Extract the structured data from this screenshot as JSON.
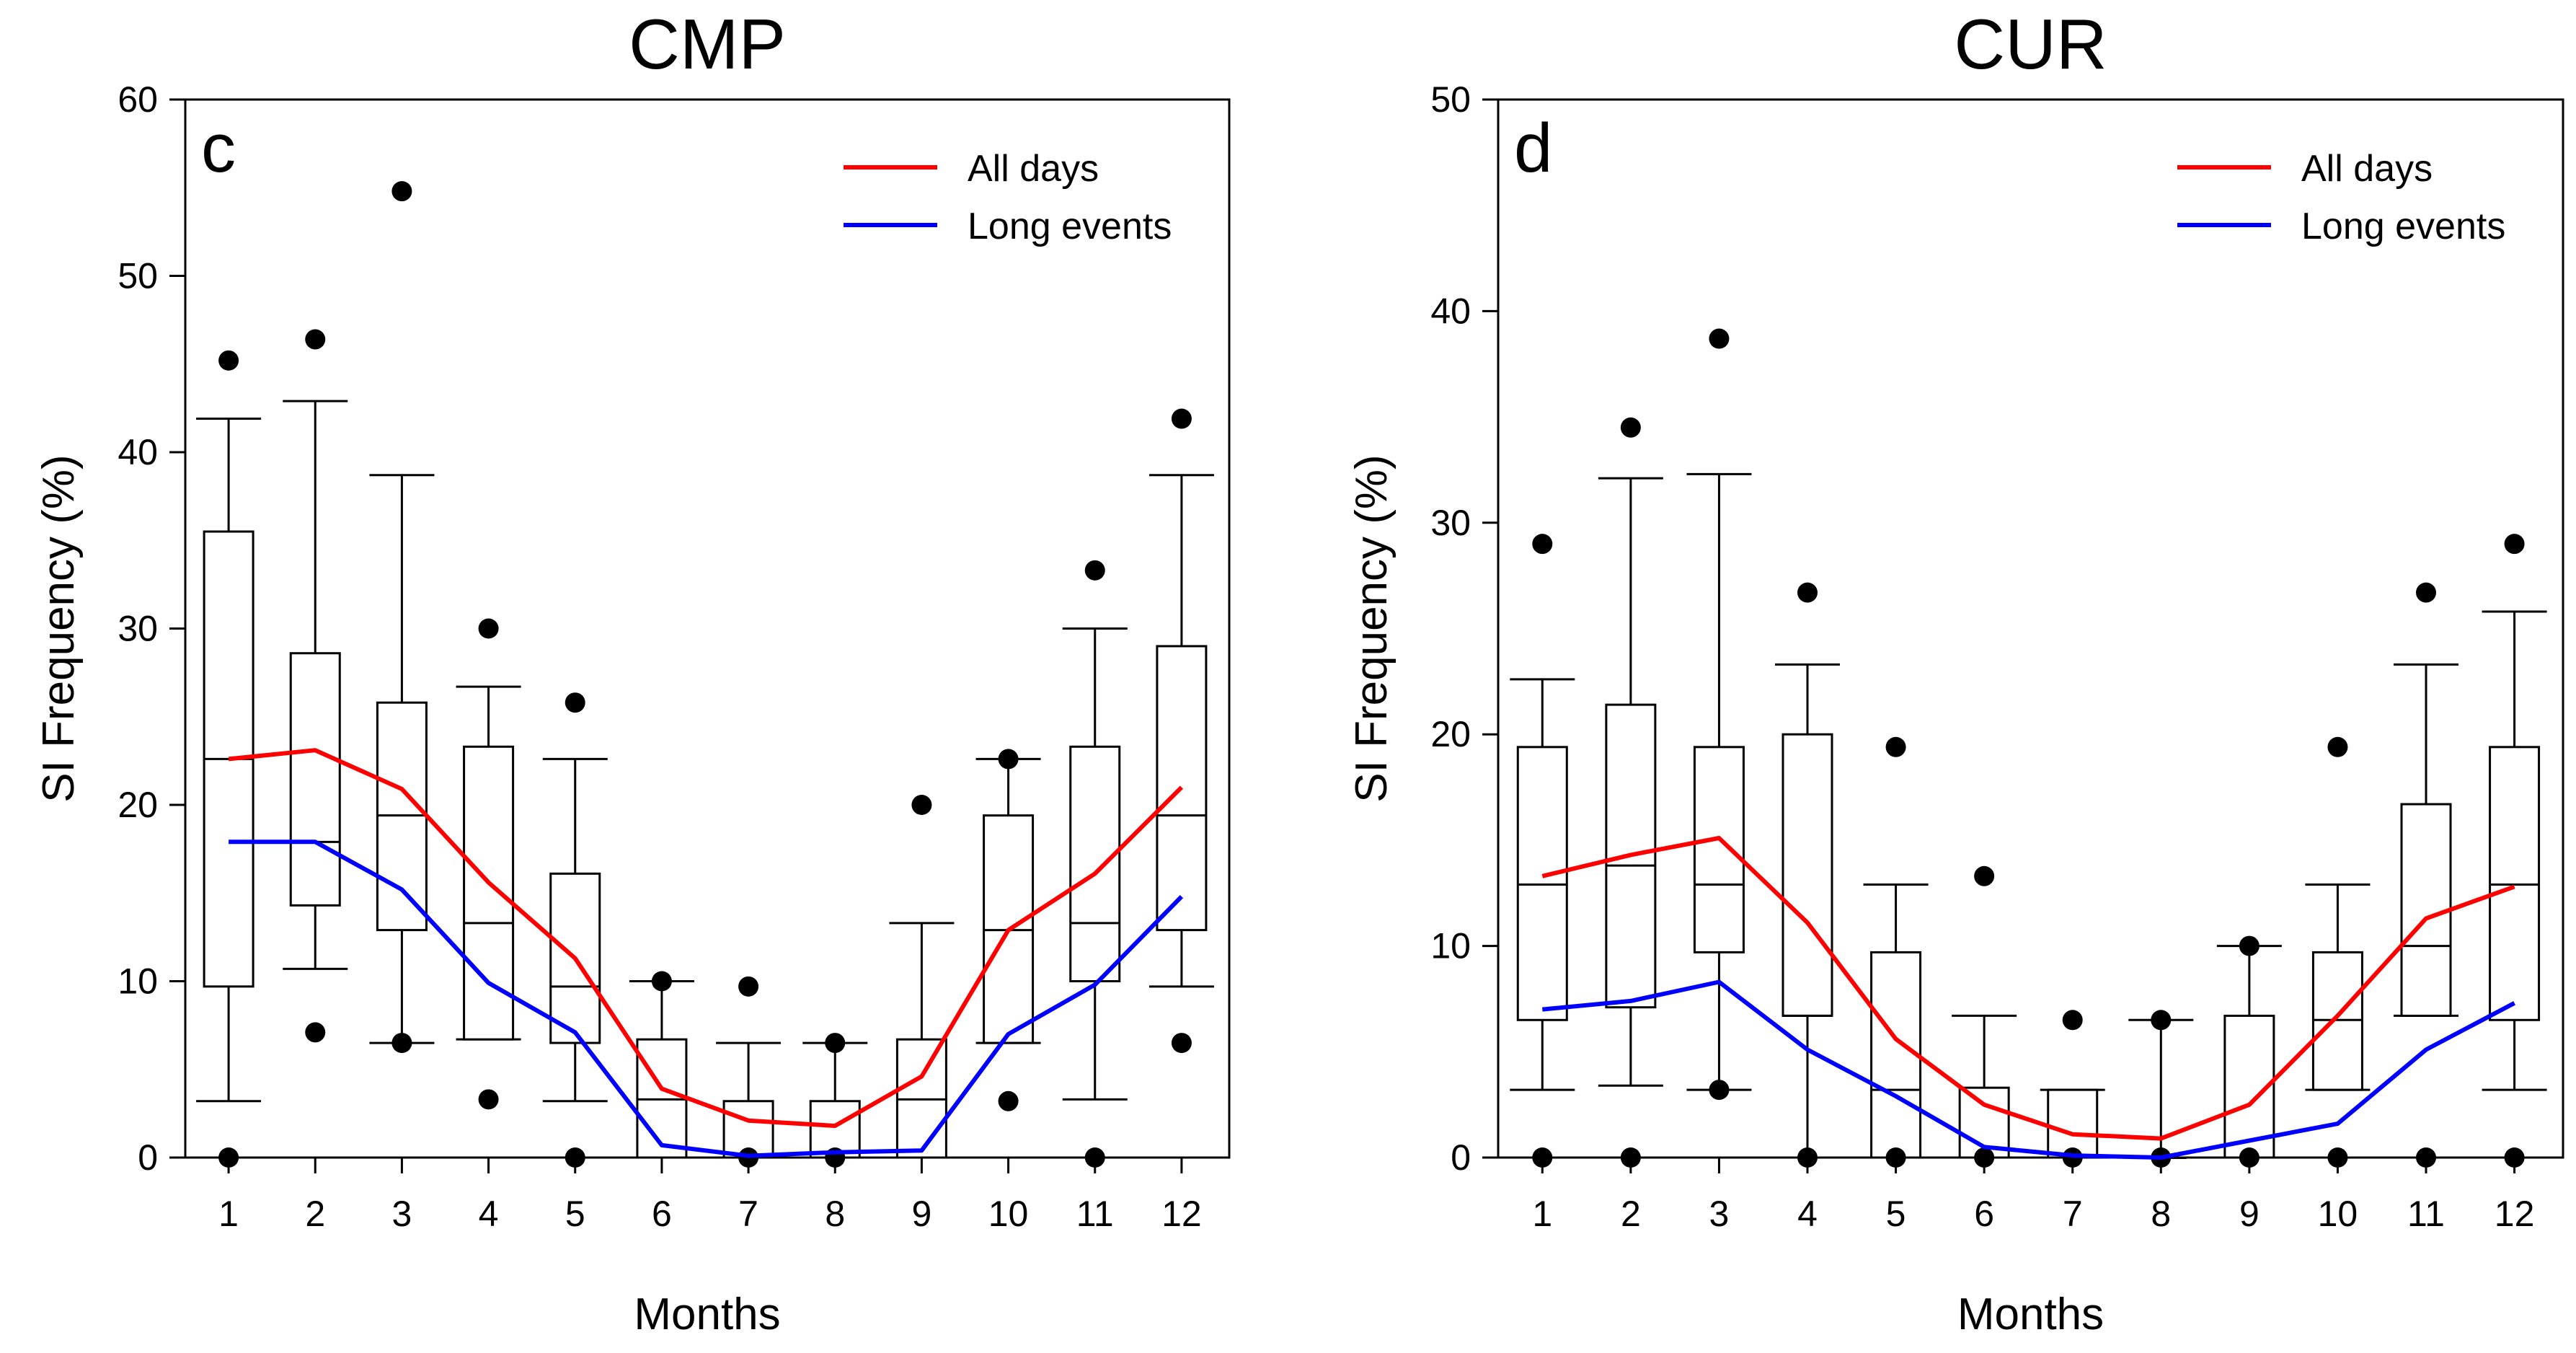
{
  "chart_data": [
    {
      "type": "box",
      "title": "CMP",
      "panel_label": "c",
      "xlabel": "Months",
      "ylabel": "SI Frequency (%)",
      "ylim": [
        0,
        60
      ],
      "yticks": [
        0,
        10,
        20,
        30,
        40,
        50,
        60
      ],
      "categories": [
        "1",
        "2",
        "3",
        "4",
        "5",
        "6",
        "7",
        "8",
        "9",
        "10",
        "11",
        "12"
      ],
      "legend_position": "top-right",
      "boxes": [
        {
          "whisker_low": 3.2,
          "q1": 9.7,
          "median": 22.6,
          "q3": 35.5,
          "whisker_high": 41.9,
          "outliers": [
            0,
            45.2
          ]
        },
        {
          "whisker_low": 10.7,
          "q1": 14.3,
          "median": 17.9,
          "q3": 28.6,
          "whisker_high": 42.9,
          "outliers": [
            7.1,
            46.4
          ]
        },
        {
          "whisker_low": 6.5,
          "q1": 12.9,
          "median": 19.4,
          "q3": 25.8,
          "whisker_high": 38.7,
          "outliers": [
            6.5,
            54.8
          ]
        },
        {
          "whisker_low": 6.7,
          "q1": 6.7,
          "median": 13.3,
          "q3": 23.3,
          "whisker_high": 26.7,
          "outliers": [
            3.3,
            30.0
          ]
        },
        {
          "whisker_low": 3.2,
          "q1": 6.5,
          "median": 9.7,
          "q3": 16.1,
          "whisker_high": 22.6,
          "outliers": [
            0,
            25.8
          ]
        },
        {
          "whisker_low": 0,
          "q1": 0,
          "median": 3.3,
          "q3": 6.7,
          "whisker_high": 10.0,
          "outliers": [
            10.0
          ]
        },
        {
          "whisker_low": 0,
          "q1": 0,
          "median": 0,
          "q3": 3.2,
          "whisker_high": 6.5,
          "outliers": [
            0,
            9.7
          ]
        },
        {
          "whisker_low": 0,
          "q1": 0,
          "median": 0,
          "q3": 3.2,
          "whisker_high": 6.5,
          "outliers": [
            0,
            6.5
          ]
        },
        {
          "whisker_low": 0,
          "q1": 0,
          "median": 3.3,
          "q3": 6.7,
          "whisker_high": 13.3,
          "outliers": [
            20.0
          ]
        },
        {
          "whisker_low": 6.5,
          "q1": 6.5,
          "median": 12.9,
          "q3": 19.4,
          "whisker_high": 22.6,
          "outliers": [
            3.2,
            22.6
          ]
        },
        {
          "whisker_low": 3.3,
          "q1": 10.0,
          "median": 13.3,
          "q3": 23.3,
          "whisker_high": 30.0,
          "outliers": [
            0,
            33.3
          ]
        },
        {
          "whisker_low": 9.7,
          "q1": 12.9,
          "median": 19.4,
          "q3": 29.0,
          "whisker_high": 38.7,
          "outliers": [
            6.5,
            41.9
          ]
        }
      ],
      "series": [
        {
          "name": "All days",
          "color": "#ff0000",
          "values": [
            22.6,
            23.1,
            20.9,
            15.6,
            11.3,
            3.9,
            2.1,
            1.8,
            4.6,
            12.9,
            16.1,
            21.0
          ]
        },
        {
          "name": "Long events",
          "color": "#0000ff",
          "values": [
            17.9,
            17.9,
            15.2,
            9.9,
            7.1,
            0.7,
            0.1,
            0.3,
            0.4,
            7.0,
            9.8,
            14.8
          ]
        }
      ]
    },
    {
      "type": "box",
      "title": "CUR",
      "panel_label": "d",
      "xlabel": "Months",
      "ylabel": "SI Frequency (%)",
      "ylim": [
        0,
        50
      ],
      "yticks": [
        0,
        10,
        20,
        30,
        40,
        50
      ],
      "categories": [
        "1",
        "2",
        "3",
        "4",
        "5",
        "6",
        "7",
        "8",
        "9",
        "10",
        "11",
        "12"
      ],
      "legend_position": "top-right",
      "boxes": [
        {
          "whisker_low": 3.2,
          "q1": 6.5,
          "median": 12.9,
          "q3": 19.4,
          "whisker_high": 22.6,
          "outliers": [
            0,
            29.0
          ]
        },
        {
          "whisker_low": 3.4,
          "q1": 7.1,
          "median": 13.8,
          "q3": 21.4,
          "whisker_high": 32.1,
          "outliers": [
            0,
            34.5
          ]
        },
        {
          "whisker_low": 3.2,
          "q1": 9.7,
          "median": 12.9,
          "q3": 19.4,
          "whisker_high": 32.3,
          "outliers": [
            3.2,
            38.7
          ]
        },
        {
          "whisker_low": 0,
          "q1": 6.7,
          "median": 6.7,
          "q3": 20.0,
          "whisker_high": 23.3,
          "outliers": [
            0,
            26.7
          ]
        },
        {
          "whisker_low": 0,
          "q1": 0,
          "median": 3.2,
          "q3": 9.7,
          "whisker_high": 12.9,
          "outliers": [
            0,
            19.4
          ]
        },
        {
          "whisker_low": 0,
          "q1": 0,
          "median": 0,
          "q3": 3.3,
          "whisker_high": 6.7,
          "outliers": [
            0,
            13.3
          ]
        },
        {
          "whisker_low": 0,
          "q1": 0,
          "median": 0,
          "q3": 3.2,
          "whisker_high": 3.2,
          "outliers": [
            0,
            6.5
          ]
        },
        {
          "whisker_low": 0,
          "q1": 0,
          "median": 0,
          "q3": 0,
          "whisker_high": 6.5,
          "outliers": [
            0,
            6.5
          ]
        },
        {
          "whisker_low": 0,
          "q1": 0,
          "median": 0,
          "q3": 6.7,
          "whisker_high": 10.0,
          "outliers": [
            0,
            10.0
          ]
        },
        {
          "whisker_low": 3.2,
          "q1": 3.2,
          "median": 6.5,
          "q3": 9.7,
          "whisker_high": 12.9,
          "outliers": [
            0,
            19.4
          ]
        },
        {
          "whisker_low": 6.7,
          "q1": 6.7,
          "median": 10.0,
          "q3": 16.7,
          "whisker_high": 23.3,
          "outliers": [
            0,
            26.7
          ]
        },
        {
          "whisker_low": 3.2,
          "q1": 6.5,
          "median": 12.9,
          "q3": 19.4,
          "whisker_high": 25.8,
          "outliers": [
            0,
            29.0
          ]
        }
      ],
      "series": [
        {
          "name": "All days",
          "color": "#ff0000",
          "values": [
            13.3,
            14.3,
            15.1,
            11.1,
            5.6,
            2.5,
            1.1,
            0.9,
            2.5,
            6.7,
            11.3,
            12.8
          ]
        },
        {
          "name": "Long events",
          "color": "#0000ff",
          "values": [
            7.0,
            7.4,
            8.3,
            5.1,
            2.9,
            0.5,
            0.1,
            0.0,
            0.8,
            1.6,
            5.1,
            7.3
          ]
        }
      ]
    }
  ]
}
